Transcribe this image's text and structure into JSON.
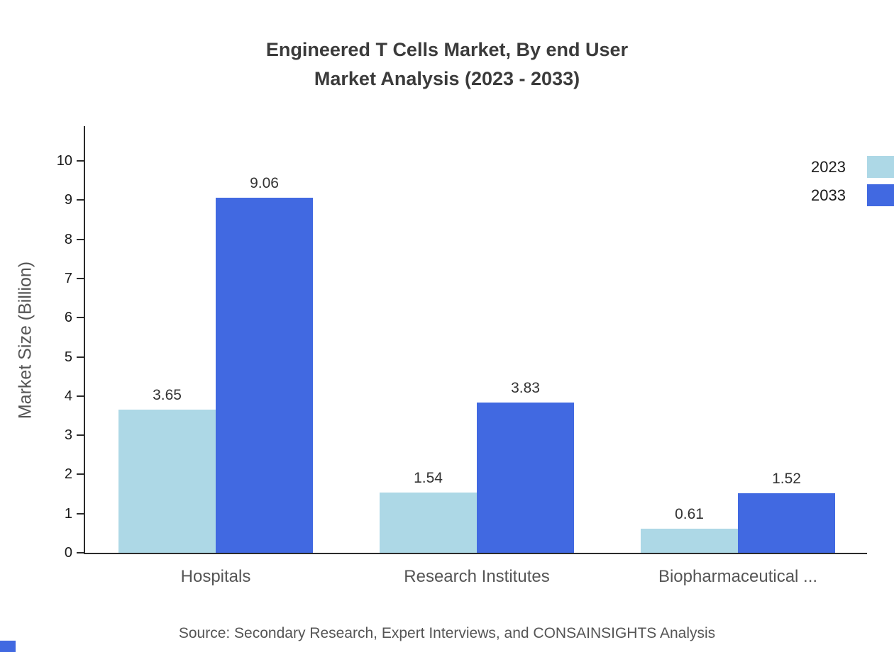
{
  "title": {
    "line1": "Engineered T Cells Market, By end User",
    "line2": "Market Analysis (2023 - 2033)"
  },
  "chart_data": {
    "type": "bar",
    "categories": [
      "Hospitals",
      "Research Institutes",
      "Biopharmaceutical ..."
    ],
    "series": [
      {
        "name": "2023",
        "color": "#ADD8E6",
        "values": [
          3.65,
          1.54,
          0.61
        ]
      },
      {
        "name": "2033",
        "color": "#4169E1",
        "values": [
          9.06,
          3.83,
          1.52
        ]
      }
    ],
    "ylabel": "Market Size (Billion)",
    "xlabel": "",
    "ylim": [
      0,
      10
    ],
    "ytick_step": 1,
    "grid": false,
    "legend_position": "top-right",
    "value_labels": true
  },
  "source": "Source: Secondary Research, Expert Interviews, and CONSAINSIGHTS Analysis",
  "colors": {
    "axis": "#2b2b2b",
    "title": "#3b3b3b",
    "tick_label": "#1a1a1a",
    "category_label": "#555555",
    "value_label": "#333333",
    "source": "#555555",
    "accent": "#4169E1"
  }
}
